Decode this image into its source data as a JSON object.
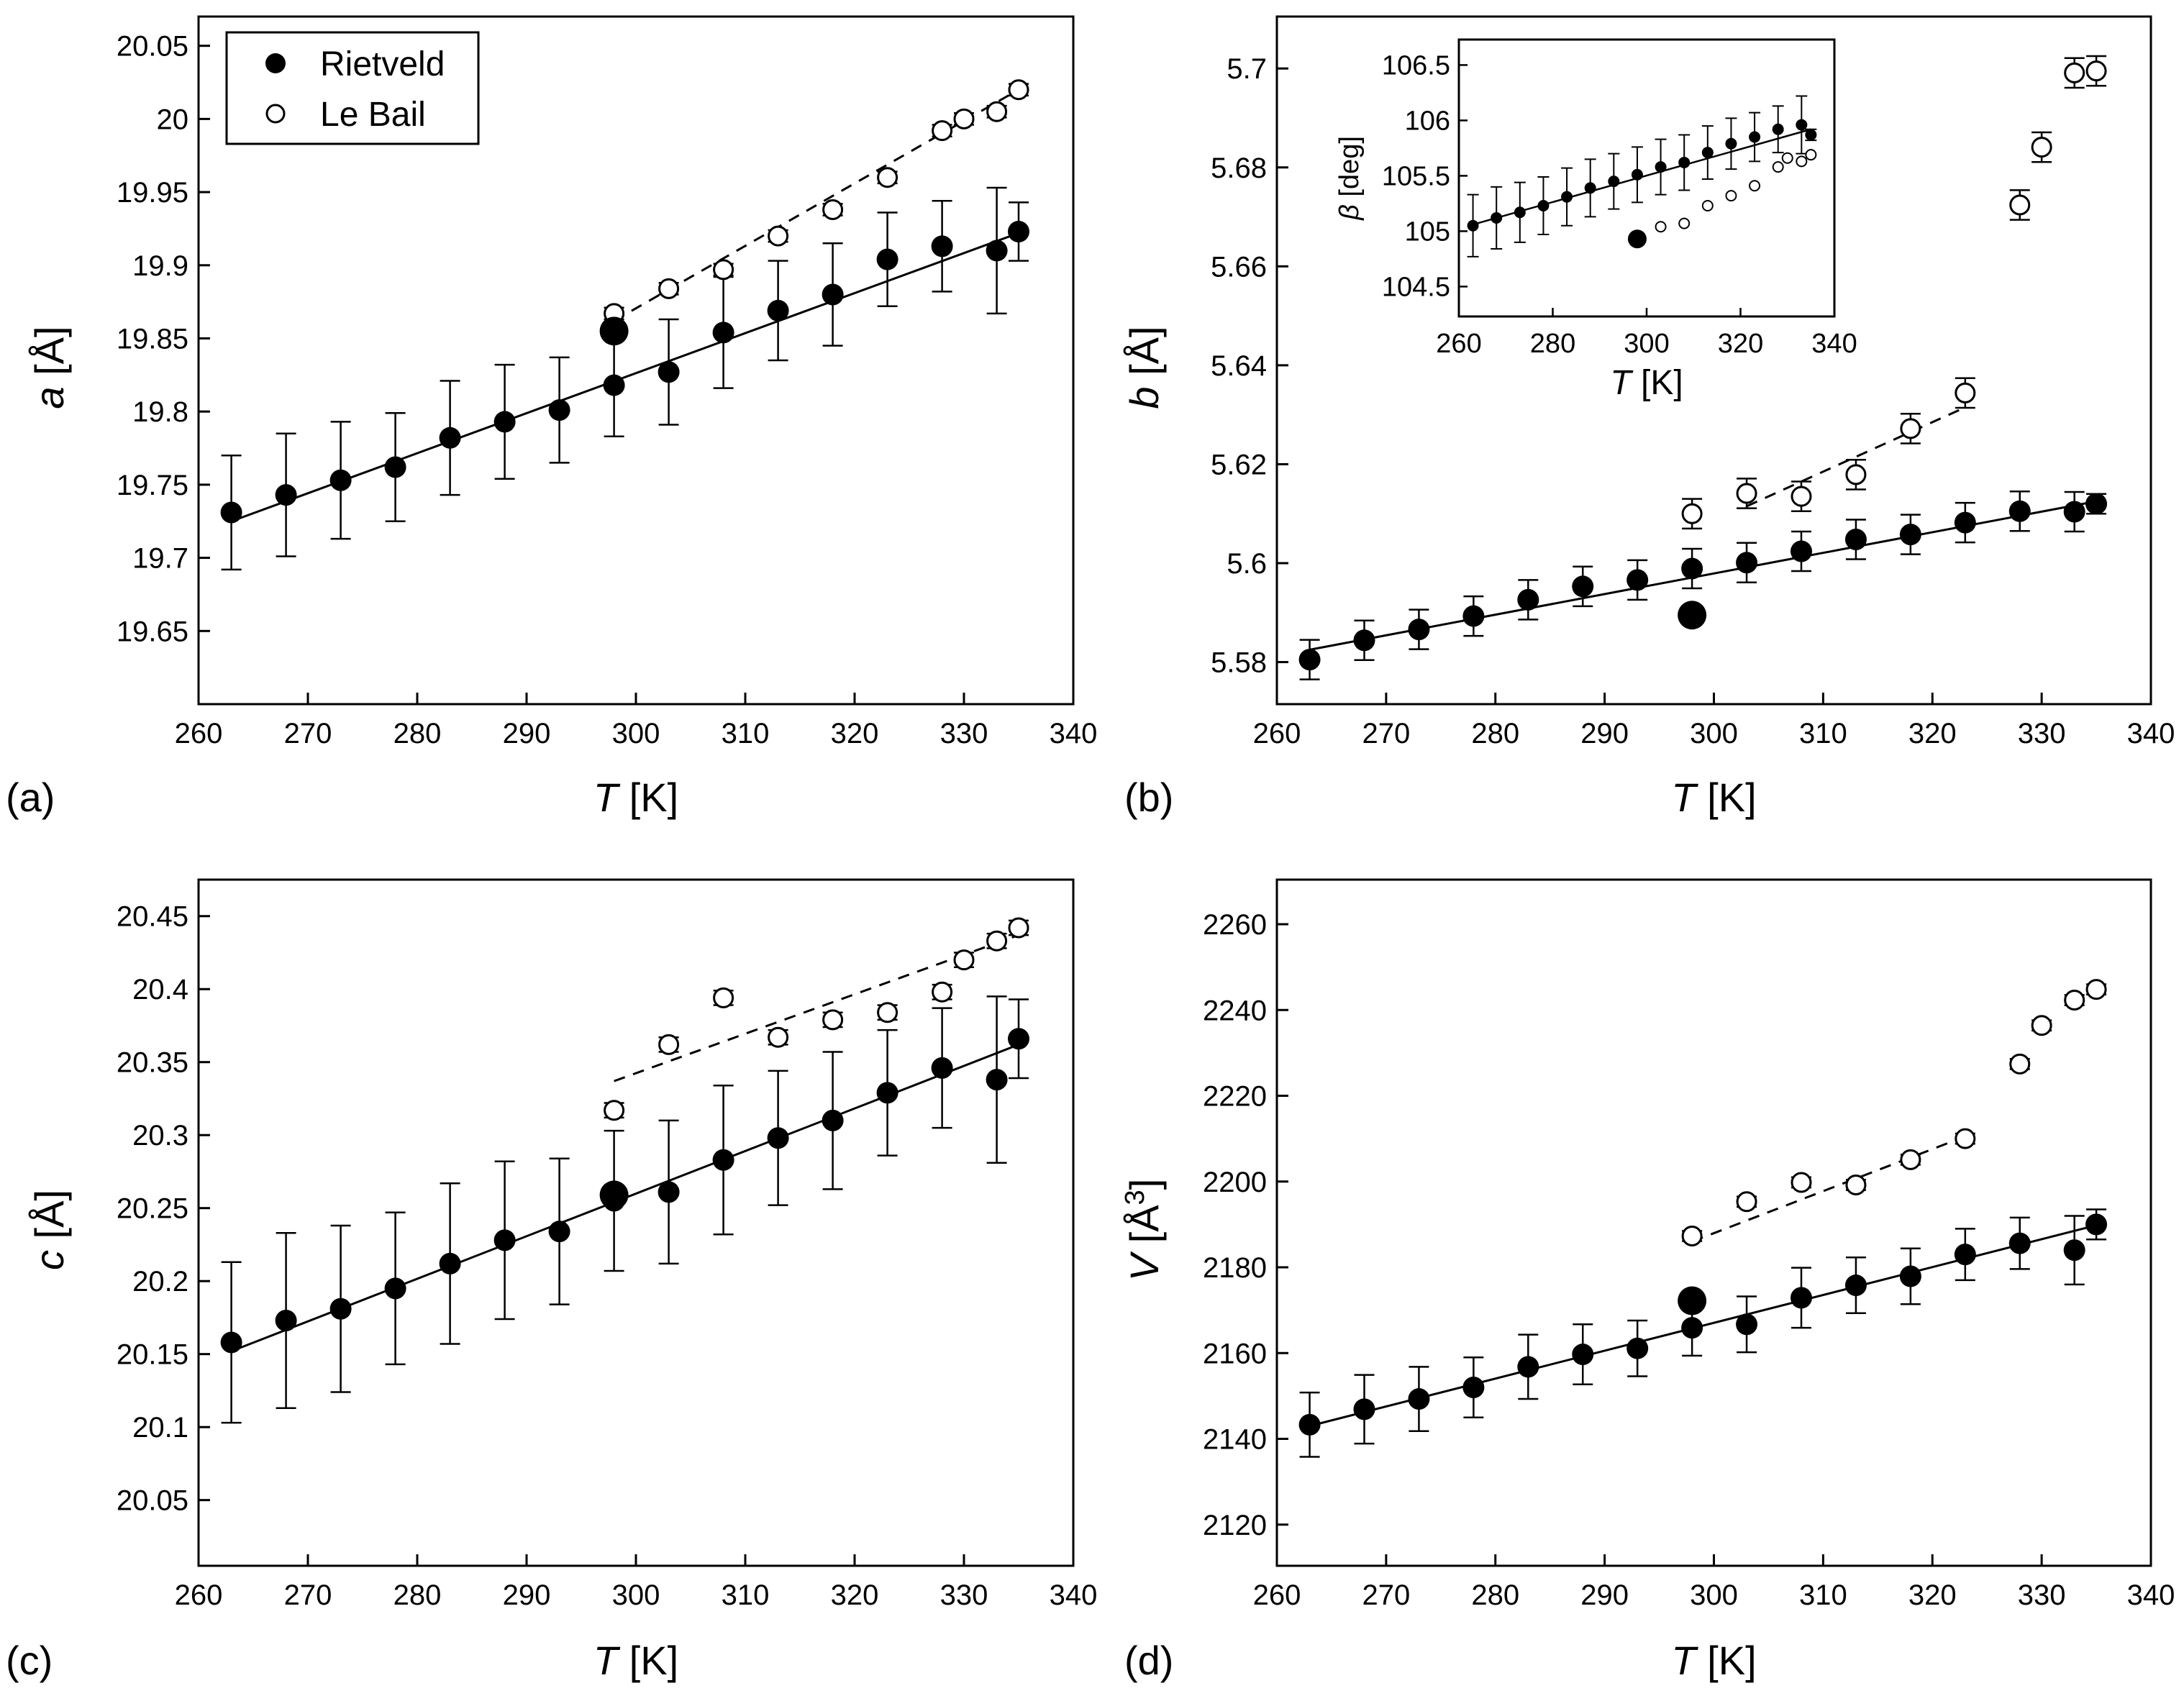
{
  "chart_data": [
    {
      "id": "a",
      "type": "scatter",
      "panel_label": "(a)",
      "xlabel": {
        "italic": "T",
        "rest": " [K]"
      },
      "ylabel": {
        "italic": "a",
        "rest": " [Å]"
      },
      "xlim": [
        260,
        340
      ],
      "ylim": [
        19.6,
        20.07
      ],
      "xticks": [
        260,
        270,
        280,
        290,
        300,
        310,
        320,
        330,
        340
      ],
      "yticks": [
        19.65,
        19.7,
        19.75,
        19.8,
        19.85,
        19.9,
        19.95,
        20,
        20.05
      ],
      "ytick_labels": [
        "19.65",
        "19.7",
        "19.75",
        "19.8",
        "19.85",
        "19.9",
        "19.95",
        "20",
        "20.05"
      ],
      "legend": {
        "position": "top-left",
        "entries": [
          {
            "name": "Rietveld",
            "marker": "filled"
          },
          {
            "name": "Le Bail",
            "marker": "open"
          }
        ]
      },
      "series": [
        {
          "name": "Rietveld",
          "marker": "filled",
          "x": [
            263,
            268,
            273,
            278,
            283,
            288,
            293,
            298,
            303,
            308,
            313,
            318,
            323,
            328,
            333,
            335
          ],
          "y": [
            19.731,
            19.743,
            19.753,
            19.762,
            19.782,
            19.793,
            19.801,
            19.818,
            19.827,
            19.854,
            19.869,
            19.88,
            19.904,
            19.913,
            19.91,
            19.923
          ],
          "err": [
            0.039,
            0.042,
            0.04,
            0.037,
            0.039,
            0.039,
            0.036,
            0.035,
            0.036,
            0.038,
            0.034,
            0.035,
            0.032,
            0.031,
            0.043,
            0.02
          ]
        },
        {
          "name": "Le Bail",
          "marker": "open",
          "x": [
            298,
            303,
            308,
            313,
            318,
            323,
            328,
            330,
            333,
            335
          ],
          "y": [
            19.867,
            19.884,
            19.897,
            19.92,
            19.938,
            19.96,
            19.992,
            20.0,
            20.005,
            20.02
          ],
          "err": [
            0.004,
            0.004,
            0.004,
            0.004,
            0.004,
            0.004,
            0.004,
            0.004,
            0.004,
            0.004
          ]
        },
        {
          "name": "single",
          "marker": "big",
          "x": [
            298
          ],
          "y": [
            19.855
          ],
          "err": [
            0
          ]
        }
      ],
      "fits": [
        {
          "style": "solid",
          "x": [
            263,
            335
          ],
          "y": [
            19.725,
            19.922
          ]
        },
        {
          "style": "dashed",
          "x": [
            298,
            335
          ],
          "y": [
            19.862,
            20.02
          ]
        }
      ]
    },
    {
      "id": "b",
      "type": "scatter",
      "panel_label": "(b)",
      "xlabel": {
        "italic": "T",
        "rest": " [K]"
      },
      "ylabel": {
        "italic": "b",
        "rest": " [Å]"
      },
      "xlim": [
        260,
        340
      ],
      "ylim": [
        5.5715,
        5.7105
      ],
      "xticks": [
        260,
        270,
        280,
        290,
        300,
        310,
        320,
        330,
        340
      ],
      "yticks": [
        5.58,
        5.6,
        5.62,
        5.64,
        5.66,
        5.68,
        5.7
      ],
      "ytick_labels": [
        "5.58",
        "5.6",
        "5.62",
        "5.64",
        "5.66",
        "5.68",
        "5.7"
      ],
      "series": [
        {
          "name": "Rietveld",
          "marker": "filled",
          "x": [
            263,
            268,
            273,
            278,
            283,
            288,
            293,
            298,
            303,
            308,
            313,
            318,
            323,
            328,
            333,
            335
          ],
          "y": [
            5.5805,
            5.5844,
            5.5866,
            5.5893,
            5.5926,
            5.5953,
            5.5966,
            5.5989,
            5.6001,
            5.6024,
            5.6048,
            5.6058,
            5.6082,
            5.6105,
            5.6104,
            5.612
          ],
          "err": [
            0.004,
            0.004,
            0.004,
            0.004,
            0.004,
            0.004,
            0.004,
            0.004,
            0.004,
            0.004,
            0.004,
            0.004,
            0.004,
            0.004,
            0.004,
            0.002
          ]
        },
        {
          "name": "Le Bail",
          "marker": "open",
          "x": [
            298,
            303,
            308,
            313,
            318,
            323,
            328,
            330,
            333,
            335
          ],
          "y": [
            5.61,
            5.6141,
            5.6135,
            5.6179,
            5.6272,
            5.6344,
            5.6724,
            5.6841,
            5.6991,
            5.6995
          ],
          "err": [
            0.003,
            0.003,
            0.003,
            0.003,
            0.003,
            0.003,
            0.003,
            0.003,
            0.003,
            0.003
          ]
        },
        {
          "name": "single",
          "marker": "big",
          "x": [
            298
          ],
          "y": [
            5.5895
          ],
          "err": [
            0
          ]
        }
      ],
      "fits": [
        {
          "style": "solid",
          "x": [
            263,
            335
          ],
          "y": [
            5.5825,
            5.6125
          ]
        },
        {
          "style": "dashed",
          "x": [
            303,
            323
          ],
          "y": [
            5.6115,
            5.6315
          ]
        }
      ],
      "inset": {
        "xlabel": {
          "italic": "T",
          "rest": " [K]"
        },
        "ylabel": {
          "italic": "β",
          "rest": " [deg]"
        },
        "xlim": [
          260,
          340
        ],
        "ylim": [
          104.23,
          106.73
        ],
        "xticks": [
          260,
          280,
          300,
          320,
          340
        ],
        "yticks": [
          104.5,
          105,
          105.5,
          106,
          106.5
        ],
        "ytick_labels": [
          "104.5",
          "105",
          "105.5",
          "106",
          "106.5"
        ],
        "series": [
          {
            "name": "Rietveld",
            "marker": "filled",
            "x": [
              263,
              268,
              273,
              278,
              283,
              288,
              293,
              298,
              303,
              308,
              313,
              318,
              323,
              328,
              333,
              335
            ],
            "y": [
              105.05,
              105.12,
              105.17,
              105.23,
              105.31,
              105.39,
              105.45,
              105.51,
              105.58,
              105.62,
              105.71,
              105.79,
              105.85,
              105.92,
              105.96,
              105.87
            ],
            "err": [
              0.28,
              0.28,
              0.27,
              0.26,
              0.26,
              0.26,
              0.25,
              0.25,
              0.25,
              0.25,
              0.24,
              0.23,
              0.22,
              0.21,
              0.26,
              0.05
            ]
          },
          {
            "name": "Le Bail",
            "marker": "open",
            "x": [
              303,
              308,
              313,
              318,
              323,
              328,
              330,
              333,
              335
            ],
            "y": [
              105.04,
              105.07,
              105.23,
              105.32,
              105.41,
              105.58,
              105.66,
              105.63,
              105.69
            ],
            "err": [
              0,
              0,
              0,
              0,
              0,
              0,
              0,
              0,
              0
            ]
          },
          {
            "name": "single",
            "marker": "big",
            "x": [
              298
            ],
            "y": [
              104.93
            ],
            "err": [
              0
            ]
          }
        ],
        "fits": [
          {
            "style": "solid",
            "x": [
              263,
              335
            ],
            "y": [
              105.06,
              105.92
            ]
          }
        ]
      }
    },
    {
      "id": "c",
      "type": "scatter",
      "panel_label": "(c)",
      "xlabel": {
        "italic": "T",
        "rest": " [K]"
      },
      "ylabel": {
        "italic": "c",
        "rest": " [Å]"
      },
      "xlim": [
        260,
        340
      ],
      "ylim": [
        20.005,
        20.475
      ],
      "xticks": [
        260,
        270,
        280,
        290,
        300,
        310,
        320,
        330,
        340
      ],
      "yticks": [
        20.05,
        20.1,
        20.15,
        20.2,
        20.25,
        20.3,
        20.35,
        20.4,
        20.45
      ],
      "ytick_labels": [
        "20.05",
        "20.1",
        "20.15",
        "20.2",
        "20.25",
        "20.3",
        "20.35",
        "20.4",
        "20.45"
      ],
      "series": [
        {
          "name": "Rietveld",
          "marker": "filled",
          "x": [
            263,
            268,
            273,
            278,
            283,
            288,
            293,
            298,
            303,
            308,
            313,
            318,
            323,
            328,
            333,
            335
          ],
          "y": [
            20.158,
            20.173,
            20.181,
            20.195,
            20.212,
            20.228,
            20.234,
            20.255,
            20.261,
            20.283,
            20.298,
            20.31,
            20.329,
            20.346,
            20.338,
            20.366
          ],
          "err": [
            0.055,
            0.06,
            0.057,
            0.052,
            0.055,
            0.054,
            0.05,
            0.048,
            0.049,
            0.051,
            0.046,
            0.047,
            0.043,
            0.041,
            0.057,
            0.027
          ]
        },
        {
          "name": "Le Bail",
          "marker": "open",
          "x": [
            298,
            303,
            308,
            313,
            318,
            323,
            328,
            330,
            333,
            335
          ],
          "y": [
            20.317,
            20.362,
            20.394,
            20.367,
            20.379,
            20.384,
            20.398,
            20.42,
            20.433,
            20.442
          ],
          "err": [
            0.005,
            0.005,
            0.005,
            0.005,
            0.005,
            0.005,
            0.005,
            0.005,
            0.005,
            0.005
          ]
        },
        {
          "name": "single",
          "marker": "big",
          "x": [
            298
          ],
          "y": [
            20.259
          ],
          "err": [
            0
          ]
        }
      ],
      "fits": [
        {
          "style": "solid",
          "x": [
            263,
            335
          ],
          "y": [
            20.152,
            20.362
          ]
        },
        {
          "style": "dashed",
          "x": [
            298,
            335
          ],
          "y": [
            20.337,
            20.437
          ]
        }
      ]
    },
    {
      "id": "d",
      "type": "scatter",
      "panel_label": "(d)",
      "xlabel": {
        "italic": "T",
        "rest": " [K]"
      },
      "ylabel": {
        "italic": "V",
        "rest": " [Å",
        "sup": "3",
        "end": "]"
      },
      "xlim": [
        260,
        340
      ],
      "ylim": [
        2110.4,
        2270.4
      ],
      "xticks": [
        260,
        270,
        280,
        290,
        300,
        310,
        320,
        330,
        340
      ],
      "yticks": [
        2120,
        2140,
        2160,
        2180,
        2200,
        2220,
        2240,
        2260
      ],
      "ytick_labels": [
        "2120",
        "2140",
        "2160",
        "2180",
        "2200",
        "2220",
        "2240",
        "2260"
      ],
      "series": [
        {
          "name": "Rietveld",
          "marker": "filled",
          "x": [
            263,
            268,
            273,
            278,
            283,
            288,
            293,
            298,
            303,
            308,
            313,
            318,
            323,
            328,
            333,
            335
          ],
          "y": [
            2143.3,
            2146.9,
            2149.3,
            2152.0,
            2156.8,
            2159.7,
            2161.1,
            2165.9,
            2166.7,
            2172.9,
            2175.8,
            2177.9,
            2183.0,
            2185.6,
            2184.0,
            2190.0
          ],
          "err": [
            7.5,
            8,
            7.5,
            7,
            7.5,
            7,
            6.5,
            6.5,
            6.5,
            7,
            6.5,
            6.5,
            6,
            6,
            8,
            3.5
          ]
        },
        {
          "name": "Le Bail",
          "marker": "open",
          "x": [
            298,
            303,
            308,
            313,
            318,
            323,
            328,
            330,
            333,
            335
          ],
          "y": [
            2187.3,
            2195.3,
            2199.8,
            2199.2,
            2205.1,
            2210.0,
            2227.4,
            2236.4,
            2242.3,
            2244.8
          ],
          "err": [
            1.2,
            1.2,
            1.2,
            1.2,
            1.2,
            1.2,
            1.2,
            1.2,
            1.2,
            1.2
          ]
        },
        {
          "name": "single",
          "marker": "big",
          "x": [
            298
          ],
          "y": [
            2172.2
          ],
          "err": [
            0
          ]
        }
      ],
      "fits": [
        {
          "style": "solid",
          "x": [
            263,
            335
          ],
          "y": [
            2143.0,
            2189.8
          ]
        },
        {
          "style": "dashed",
          "x": [
            298,
            323
          ],
          "y": [
            2186.0,
            2210.5
          ]
        }
      ]
    }
  ]
}
